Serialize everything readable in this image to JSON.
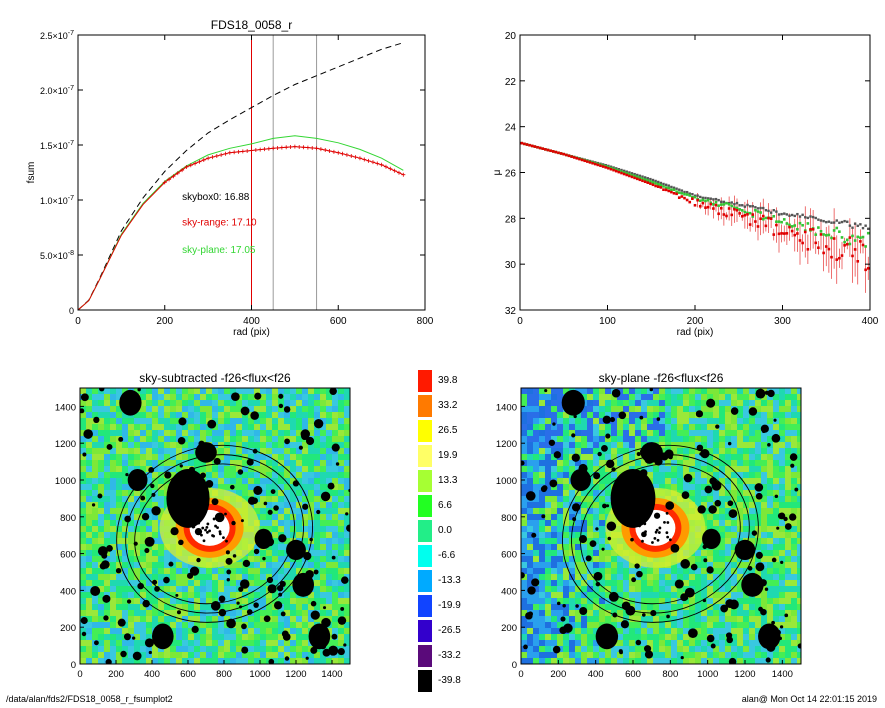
{
  "figure": {
    "footer_left": "/data/alan/fds2/FDS18_0058_r_fsumplot2",
    "footer_right": "alan@  Mon Oct 14 22:01:15 2019"
  },
  "chart_data": [
    {
      "type": "line",
      "title": "FDS18_0058_r",
      "xlabel": "rad (pix)",
      "ylabel": "fsum",
      "xlim": [
        0,
        800
      ],
      "ylim": [
        0,
        2.5e-07
      ],
      "xticks": [
        "0",
        "200",
        "400",
        "600",
        "800"
      ],
      "yticks": [
        {
          "v": 0,
          "label": "0"
        },
        {
          "v": 5e-08,
          "label": "5.0×10",
          "exp": "-8"
        },
        {
          "v": 1e-07,
          "label": "1.0×10",
          "exp": "-7"
        },
        {
          "v": 1.5e-07,
          "label": "1.5×10",
          "exp": "-7"
        },
        {
          "v": 2e-07,
          "label": "2.0×10",
          "exp": "-7"
        },
        {
          "v": 2.5e-07,
          "label": "2.5×10",
          "exp": "-7"
        }
      ],
      "vlines": [
        {
          "x": 400,
          "color": "#e00000"
        },
        {
          "x": 450,
          "color": "#9a9a9a"
        },
        {
          "x": 550,
          "color": "#9a9a9a"
        }
      ],
      "series": [
        {
          "style": "dashed",
          "color": "#000000",
          "x": [
            0,
            25,
            50,
            100,
            150,
            200,
            250,
            300,
            350,
            400,
            450,
            500,
            550,
            600,
            650,
            700,
            750
          ],
          "y": [
            0,
            9e-09,
            2.9e-08,
            7.2e-08,
            1.02e-07,
            1.26e-07,
            1.45e-07,
            1.61e-07,
            1.73e-07,
            1.84e-07,
            1.95e-07,
            2.05e-07,
            2.13e-07,
            2.21e-07,
            2.29e-07,
            2.37e-07,
            2.43e-07
          ]
        },
        {
          "style": "solid",
          "color": "#33d633",
          "x": [
            0,
            25,
            50,
            100,
            150,
            200,
            250,
            300,
            350,
            400,
            450,
            500,
            550,
            600,
            650,
            700,
            750
          ],
          "y": [
            0,
            8.5e-09,
            2.8e-08,
            6.9e-08,
            9.7e-08,
            1.17e-07,
            1.31e-07,
            1.41e-07,
            1.47e-07,
            1.51e-07,
            1.56e-07,
            1.585e-07,
            1.56e-07,
            1.52e-07,
            1.46e-07,
            1.38e-07,
            1.27e-07
          ]
        },
        {
          "style": "plus",
          "color": "#e00000",
          "x": [
            0,
            25,
            50,
            100,
            150,
            200,
            250,
            300,
            350,
            400,
            450,
            500,
            550,
            600,
            650,
            700,
            750
          ],
          "y": [
            0,
            8.5e-09,
            2.8e-08,
            6.8e-08,
            9.6e-08,
            1.16e-07,
            1.3e-07,
            1.38e-07,
            1.43e-07,
            1.45e-07,
            1.47e-07,
            1.485e-07,
            1.47e-07,
            1.43e-07,
            1.38e-07,
            1.32e-07,
            1.23e-07
          ]
        }
      ],
      "annotations": [
        {
          "text": "skybox0: 16.88",
          "color": "#000000",
          "x": 240,
          "y": 1e-07
        },
        {
          "text": "sky-range: 17.10",
          "color": "#e00000",
          "x": 240,
          "y": 7.7e-08
        },
        {
          "text": "sky-plane: 17.05",
          "color": "#33d633",
          "x": 240,
          "y": 5.2e-08
        }
      ]
    },
    {
      "type": "scatter",
      "xlabel": "rad (pix)",
      "ylabel": "μ",
      "xlim": [
        0,
        400
      ],
      "ylim": [
        32,
        20
      ],
      "xticks": [
        "0",
        "100",
        "200",
        "300",
        "400"
      ],
      "yticks": [
        "20",
        "22",
        "24",
        "26",
        "28",
        "30",
        "32"
      ],
      "profile": {
        "r": [
          0,
          50,
          100,
          150,
          200,
          250,
          300,
          350,
          400
        ],
        "mu_black": [
          24.7,
          25.2,
          25.7,
          26.3,
          27.0,
          27.4,
          27.8,
          28.1,
          28.4
        ],
        "mu_red": [
          24.7,
          25.2,
          25.8,
          26.5,
          27.3,
          27.9,
          28.5,
          29.2,
          29.7
        ],
        "mu_green": [
          24.7,
          25.2,
          25.75,
          26.4,
          27.1,
          27.6,
          28.1,
          28.6,
          29.0
        ]
      }
    },
    {
      "type": "heatmap",
      "title": "sky-subtracted -f26<flux<f26",
      "xlim": [
        0,
        1500
      ],
      "ylim": [
        0,
        1500
      ],
      "ticks": [
        "0",
        "200",
        "400",
        "600",
        "800",
        "1000",
        "1200",
        "1400"
      ]
    },
    {
      "type": "heatmap",
      "title": "sky-plane -f26<flux<f26",
      "xlim": [
        0,
        1500
      ],
      "ylim": [
        0,
        1500
      ],
      "ticks": [
        "0",
        "200",
        "400",
        "600",
        "800",
        "1000",
        "1200",
        "1400"
      ]
    }
  ],
  "colorbar": [
    {
      "label": "39.8",
      "color": "#ff1a00"
    },
    {
      "label": "33.2",
      "color": "#ff7a00"
    },
    {
      "label": "26.5",
      "color": "#ffff00"
    },
    {
      "label": "19.9",
      "color": "#ffff66"
    },
    {
      "label": "13.3",
      "color": "#a6ff33"
    },
    {
      "label": "6.6",
      "color": "#22ff22"
    },
    {
      "label": "0.0",
      "color": "#22ee88"
    },
    {
      "label": "-6.6",
      "color": "#00ffee"
    },
    {
      "label": "-13.3",
      "color": "#00aaff"
    },
    {
      "label": "-19.9",
      "color": "#1144ff"
    },
    {
      "label": "-26.5",
      "color": "#3300cc"
    },
    {
      "label": "-33.2",
      "color": "#5a0a7a"
    },
    {
      "label": "-39.8",
      "color": "#000000"
    }
  ]
}
